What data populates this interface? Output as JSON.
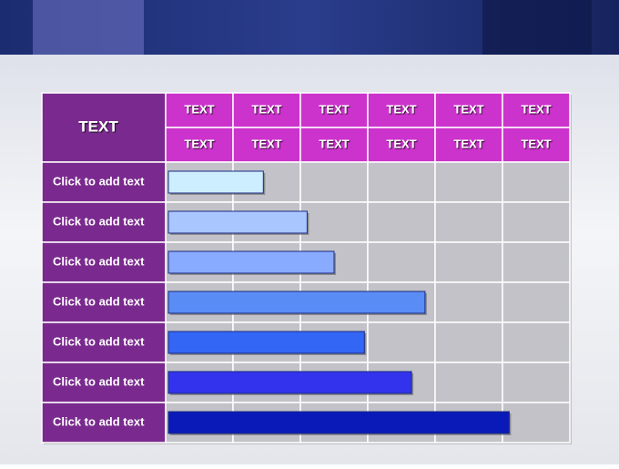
{
  "table": {
    "corner": "TEXT",
    "header_rows": [
      [
        "TEXT",
        "TEXT",
        "TEXT",
        "TEXT",
        "TEXT",
        "TEXT"
      ],
      [
        "TEXT",
        "TEXT",
        "TEXT",
        "TEXT",
        "TEXT",
        "TEXT"
      ]
    ],
    "row_labels": [
      "Click to add text",
      "Click to add text",
      "Click to add text",
      "Click to add text",
      "Click to add text",
      "Click to add text",
      "Click to add text"
    ]
  },
  "bars": {
    "values": [
      1.45,
      2.1,
      2.5,
      3.85,
      2.95,
      3.65,
      5.1
    ],
    "colors": [
      "#cceeff",
      "#aac6ff",
      "#88aaff",
      "#5a8cf5",
      "#3366f5",
      "#3333ee",
      "#0a1ab8"
    ]
  }
}
